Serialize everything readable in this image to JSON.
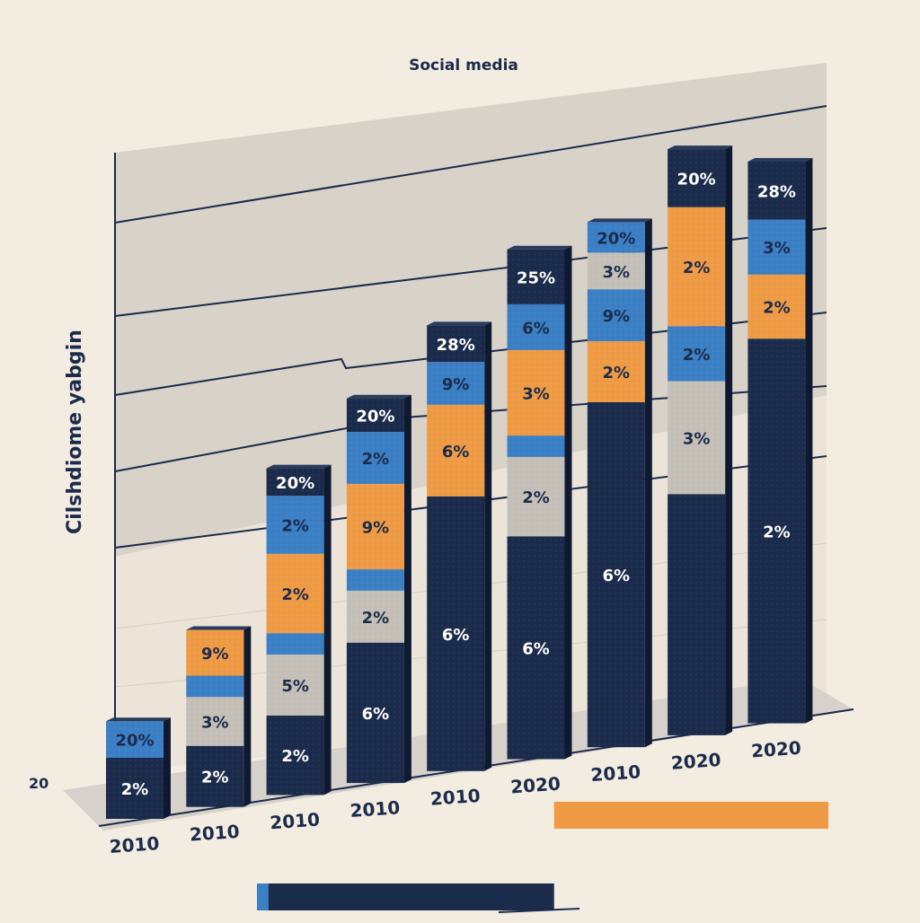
{
  "chart_data": {
    "type": "bar",
    "stacked": true,
    "title": "Social media",
    "ylabel": "Cilshdiome yabgin",
    "y_axis_tick": "20",
    "categories": [
      "2010",
      "2010",
      "2010",
      "2010",
      "2010",
      "2020",
      "2010",
      "2020",
      "2020"
    ],
    "colors": {
      "navy": "#1b2b4b",
      "gray": "#c4c0b8",
      "orange": "#ef9b45",
      "blue": "#3b7fc4",
      "cap": "#1b2b4b"
    },
    "segment_order_bottom_to_top": [
      "navy",
      "gray",
      "orange",
      "blue",
      "cap"
    ],
    "bars": [
      {
        "category": "2010",
        "segments": [
          {
            "color": "navy",
            "value": 2,
            "label": "2%"
          },
          {
            "color": "blue",
            "value": 1.2,
            "label": "20%"
          }
        ]
      },
      {
        "category": "2010",
        "segments": [
          {
            "color": "navy",
            "value": 2,
            "label": "2%"
          },
          {
            "color": "gray",
            "value": 1.6,
            "label": "3%"
          },
          {
            "color": "blue",
            "value": 0.7,
            "label": ""
          },
          {
            "color": "orange",
            "value": 1.5,
            "label": "9%"
          }
        ]
      },
      {
        "category": "2010",
        "segments": [
          {
            "color": "navy",
            "value": 2.6,
            "label": "2%"
          },
          {
            "color": "gray",
            "value": 2.0,
            "label": "5%"
          },
          {
            "color": "blue",
            "value": 0.7,
            "label": ""
          },
          {
            "color": "orange",
            "value": 2.6,
            "label": "2%"
          },
          {
            "color": "blue",
            "value": 1.9,
            "label": "2%"
          },
          {
            "color": "cap",
            "value": 0.9,
            "label": "20%"
          }
        ]
      },
      {
        "category": "2010",
        "segments": [
          {
            "color": "navy",
            "value": 4.6,
            "label": "6%"
          },
          {
            "color": "gray",
            "value": 1.7,
            "label": "2%"
          },
          {
            "color": "blue",
            "value": 0.7,
            "label": ""
          },
          {
            "color": "orange",
            "value": 2.8,
            "label": "9%"
          },
          {
            "color": "blue",
            "value": 1.7,
            "label": "2%"
          },
          {
            "color": "cap",
            "value": 1.1,
            "label": "20%"
          }
        ]
      },
      {
        "category": "2010",
        "segments": [
          {
            "color": "navy",
            "value": 9.0,
            "label": "6%"
          },
          {
            "color": "orange",
            "value": 3.0,
            "label": "6%"
          },
          {
            "color": "blue",
            "value": 1.4,
            "label": "9%"
          },
          {
            "color": "cap",
            "value": 1.2,
            "label": "28%"
          }
        ]
      },
      {
        "category": "2020",
        "segments": [
          {
            "color": "navy",
            "value": 7.3,
            "label": "6%"
          },
          {
            "color": "gray",
            "value": 2.6,
            "label": "2%"
          },
          {
            "color": "blue",
            "value": 0.7,
            "label": ""
          },
          {
            "color": "orange",
            "value": 2.8,
            "label": "3%"
          },
          {
            "color": "blue",
            "value": 1.5,
            "label": "6%"
          },
          {
            "color": "cap",
            "value": 1.8,
            "label": "25%"
          }
        ]
      },
      {
        "category": "2010",
        "segments": [
          {
            "color": "navy",
            "value": 11.3,
            "label": "6%"
          },
          {
            "color": "orange",
            "value": 2.0,
            "label": "2%"
          },
          {
            "color": "blue",
            "value": 1.7,
            "label": "9%"
          },
          {
            "color": "gray",
            "value": 1.2,
            "label": "3%"
          },
          {
            "color": "blue",
            "value": 1.0,
            "label": "20%"
          }
        ]
      },
      {
        "category": "2020",
        "segments": [
          {
            "color": "navy",
            "value": 7.9,
            "label": ""
          },
          {
            "color": "gray",
            "value": 3.7,
            "label": "3%"
          },
          {
            "color": "blue",
            "value": 1.8,
            "label": "2%"
          },
          {
            "color": "orange",
            "value": 3.9,
            "label": "2%"
          },
          {
            "color": "cap",
            "value": 1.9,
            "label": "20%"
          }
        ]
      },
      {
        "category": "2020",
        "segments": [
          {
            "color": "navy",
            "value": 12.6,
            "label": "2%"
          },
          {
            "color": "orange",
            "value": 2.1,
            "label": "2%"
          },
          {
            "color": "blue",
            "value": 1.8,
            "label": "3%"
          },
          {
            "color": "cap",
            "value": 1.9,
            "label": "28%"
          }
        ]
      }
    ],
    "legend": [
      {
        "color": "#3b7fc4",
        "value": 0.02
      },
      {
        "color": "#1b2b4b",
        "value": 0.5
      },
      {
        "color": "#ef9b45",
        "value": 0.48
      }
    ],
    "grid": true
  }
}
